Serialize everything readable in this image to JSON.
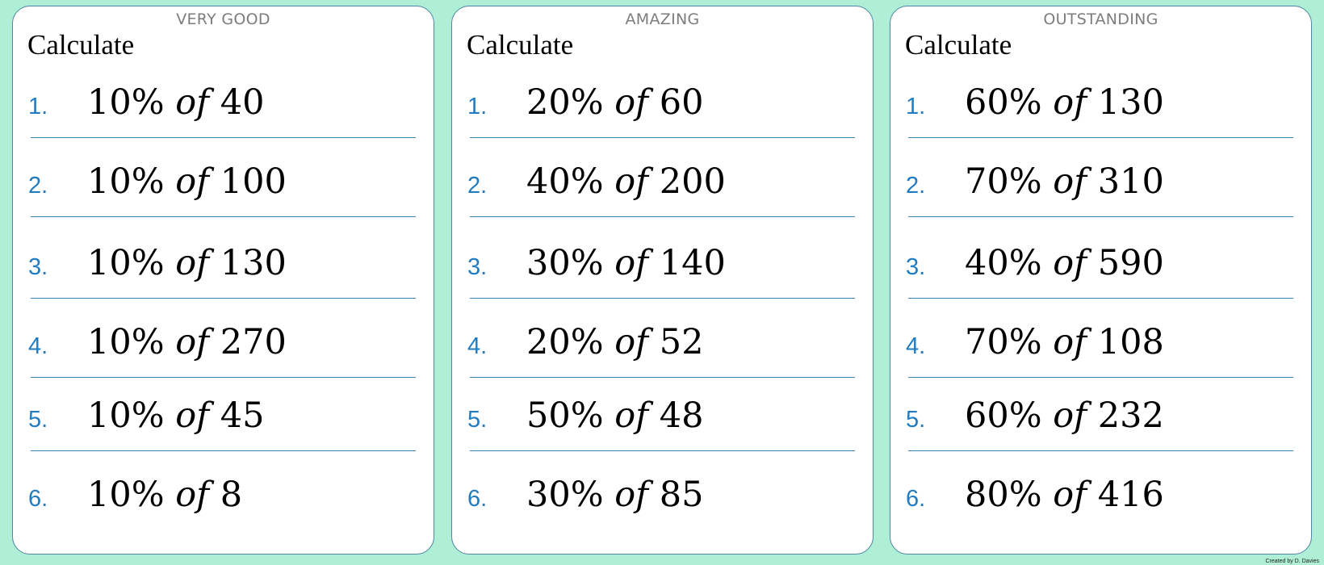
{
  "cards": [
    {
      "level": "VERY GOOD",
      "heading": "Calculate",
      "questions": [
        {
          "num": "1.",
          "percent": "10%",
          "of": "of",
          "value": "40"
        },
        {
          "num": "2.",
          "percent": "10%",
          "of": "of",
          "value": "100"
        },
        {
          "num": "3.",
          "percent": "10%",
          "of": "of",
          "value": "130"
        },
        {
          "num": "4.",
          "percent": "10%",
          "of": "of",
          "value": "270"
        },
        {
          "num": "5.",
          "percent": "10%",
          "of": "of",
          "value": "45"
        },
        {
          "num": "6.",
          "percent": "10%",
          "of": "of",
          "value": "8"
        }
      ]
    },
    {
      "level": "AMAZING",
      "heading": "Calculate",
      "questions": [
        {
          "num": "1.",
          "percent": "20%",
          "of": "of",
          "value": "60"
        },
        {
          "num": "2.",
          "percent": "40%",
          "of": "of",
          "value": "200"
        },
        {
          "num": "3.",
          "percent": "30%",
          "of": "of",
          "value": "140"
        },
        {
          "num": "4.",
          "percent": "20%",
          "of": "of",
          "value": "52"
        },
        {
          "num": "5.",
          "percent": "50%",
          "of": "of",
          "value": "48"
        },
        {
          "num": "6.",
          "percent": "30%",
          "of": "of",
          "value": "85"
        }
      ]
    },
    {
      "level": "OUTSTANDING",
      "heading": "Calculate",
      "questions": [
        {
          "num": "1.",
          "percent": "60%",
          "of": "of",
          "value": "130"
        },
        {
          "num": "2.",
          "percent": "70%",
          "of": "of",
          "value": "310"
        },
        {
          "num": "3.",
          "percent": "40%",
          "of": "of",
          "value": "590"
        },
        {
          "num": "4.",
          "percent": "70%",
          "of": "of",
          "value": "108"
        },
        {
          "num": "5.",
          "percent": "60%",
          "of": "of",
          "value": "232"
        },
        {
          "num": "6.",
          "percent": "80%",
          "of": "of",
          "value": "416"
        }
      ]
    }
  ],
  "credit": "Created by D. Davies",
  "colors": {
    "background": "#aeefd6",
    "card_border": "#4f86a6",
    "number": "#1f7cc2",
    "rule": "#3f85b0",
    "level_text": "#7d7d7d"
  }
}
